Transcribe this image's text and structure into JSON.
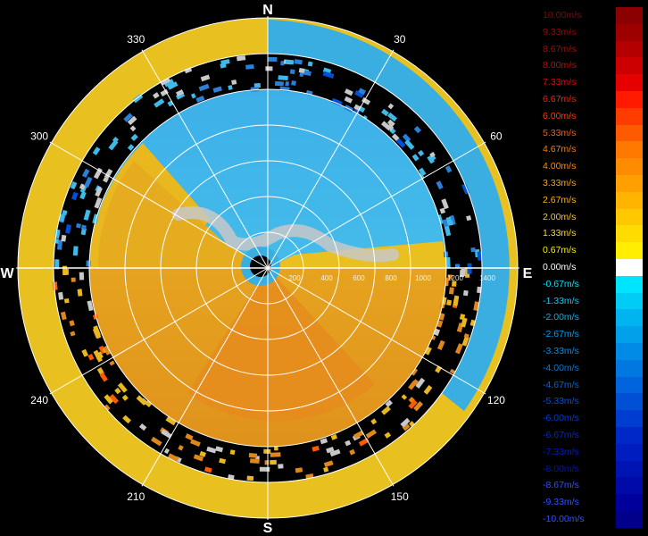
{
  "compass": {
    "north": "N",
    "south": "S",
    "east": "E",
    "west": "W"
  },
  "bearings": [
    {
      "deg": 30,
      "label": "30"
    },
    {
      "deg": 60,
      "label": "60"
    },
    {
      "deg": 120,
      "label": "120"
    },
    {
      "deg": 150,
      "label": "150"
    },
    {
      "deg": 210,
      "label": "210"
    },
    {
      "deg": 240,
      "label": "240"
    },
    {
      "deg": 300,
      "label": "300"
    },
    {
      "deg": 330,
      "label": "330"
    }
  ],
  "range_labels": [
    "200",
    "400",
    "600",
    "800",
    "1000",
    "1200",
    "1400"
  ],
  "legend": {
    "entries": [
      {
        "label": "10.00m/s",
        "color": "#8b0000"
      },
      {
        "label": "9.33m/s",
        "color": "#9e0000"
      },
      {
        "label": "8.67m/s",
        "color": "#b40000"
      },
      {
        "label": "8.00m/s",
        "color": "#cc0000"
      },
      {
        "label": "7.33m/s",
        "color": "#e60000"
      },
      {
        "label": "6.67m/s",
        "color": "#ff1a00"
      },
      {
        "label": "6.00m/s",
        "color": "#ff3c00"
      },
      {
        "label": "5.33m/s",
        "color": "#ff5a00"
      },
      {
        "label": "4.67m/s",
        "color": "#ff7800"
      },
      {
        "label": "4.00m/s",
        "color": "#ff8c00"
      },
      {
        "label": "3.33m/s",
        "color": "#ffa000"
      },
      {
        "label": "2.67m/s",
        "color": "#ffb400"
      },
      {
        "label": "2.00m/s",
        "color": "#ffc800"
      },
      {
        "label": "1.33m/s",
        "color": "#ffdc00"
      },
      {
        "label": "0.67m/s",
        "color": "#ffee00"
      },
      {
        "label": "0.00m/s",
        "color": "#ffffff"
      },
      {
        "label": "-0.67m/s",
        "color": "#00e5ff"
      },
      {
        "label": "-1.33m/s",
        "color": "#00ccf5"
      },
      {
        "label": "-2.00m/s",
        "color": "#00b4f0"
      },
      {
        "label": "-2.67m/s",
        "color": "#00a0eb"
      },
      {
        "label": "-3.33m/s",
        "color": "#008ce6"
      },
      {
        "label": "-4.00m/s",
        "color": "#0078e0"
      },
      {
        "label": "-4.67m/s",
        "color": "#0064dc"
      },
      {
        "label": "-5.33m/s",
        "color": "#0050d6"
      },
      {
        "label": "-6.00m/s",
        "color": "#003cd0"
      },
      {
        "label": "-6.67m/s",
        "color": "#0028c8"
      },
      {
        "label": "-7.33m/s",
        "color": "#001ec0"
      },
      {
        "label": "-8.00m/s",
        "color": "#0014b4"
      },
      {
        "label": "-8.67m/s",
        "color": "#000aa8"
      },
      {
        "label": "-9.33m/s",
        "color": "#00009c"
      },
      {
        "label": "-10.00m/s",
        "color": "#00008b"
      }
    ]
  },
  "colors": {
    "approach": "#e9b81e",
    "approach_deep": "#e0861f",
    "recede": "#3fb9e6",
    "recede_deep": "#2a7fd6",
    "no_data": "#c8c8c8",
    "background": "#000000",
    "grid": "#ffffff"
  }
}
